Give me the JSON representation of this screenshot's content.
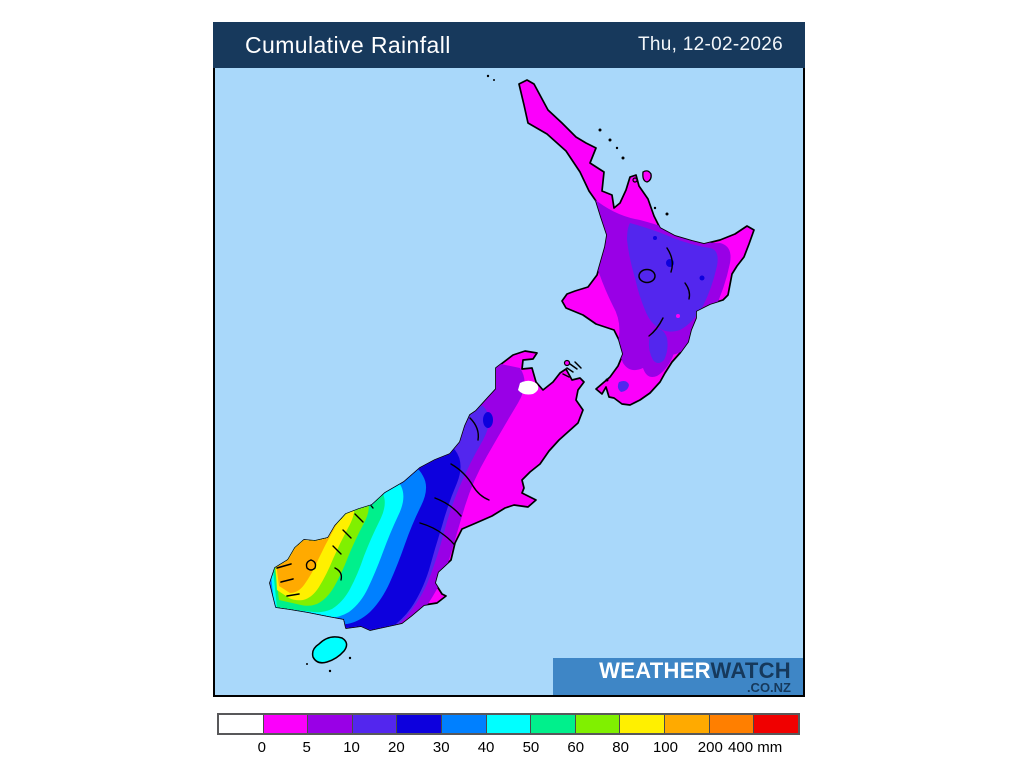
{
  "header": {
    "title": "Cumulative Rainfall",
    "date": "Thu, 12-02-2026"
  },
  "logo": {
    "part1": "WEATHER",
    "part2": "WATCH",
    "domain": ".CO.NZ"
  },
  "legend": {
    "unit": "mm",
    "boundaries": [
      "0",
      "5",
      "10",
      "20",
      "30",
      "40",
      "50",
      "60",
      "80",
      "100",
      "200",
      "400"
    ],
    "colors": [
      "#ffffff",
      "#fb00fb",
      "#9900e6",
      "#5326ee",
      "#0d00dd",
      "#0080ff",
      "#00ffff",
      "#00f08c",
      "#80f000",
      "#fff000",
      "#ffaa00",
      "#ff7f00",
      "#f00000"
    ]
  },
  "palette": {
    "header_bg": "#17395c",
    "ocean": "#a9d8fa",
    "logo_bg": "#3e86c6",
    "coastline": "#000000"
  },
  "map": {
    "region_label": "New Zealand cumulative rainfall contour map"
  }
}
